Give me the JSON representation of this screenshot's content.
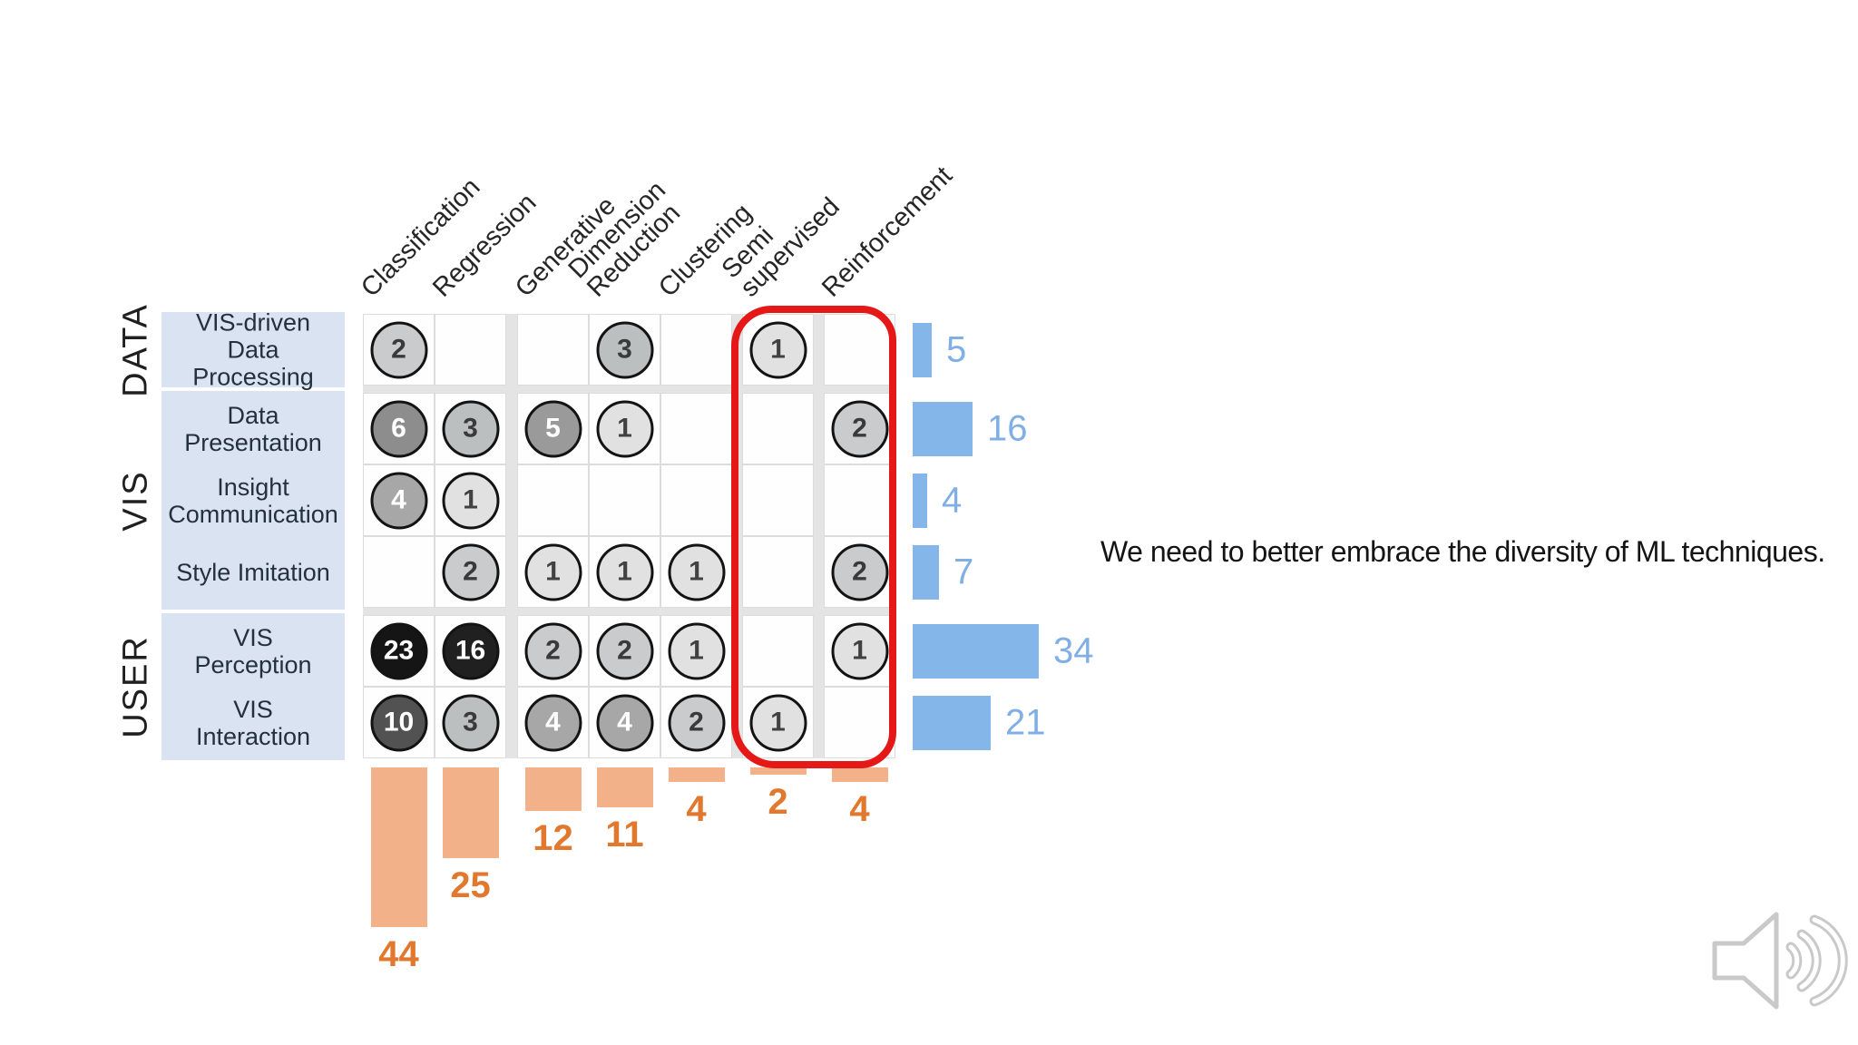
{
  "slide": {
    "quote": "We need to better embrace the diversity of ML techniques."
  },
  "icons": {
    "audio": "speaker-sound-waves-icon"
  },
  "colors": {
    "row_label_box": "#d9e3f1",
    "row_label_text": "#25303f",
    "group_label_text": "#1f1f1f",
    "header_text": "#262626",
    "grid_gap": "#e4e4e4",
    "cell_bg": "#fefefe",
    "cell_border": "#dcdcdc",
    "circle_border": "#131313",
    "row_bar": "#85b6ea",
    "row_bar_label": "#7fafe4",
    "col_bar": "#f3b189",
    "col_bar_label": "#e2772e",
    "highlight": "#e51717",
    "quote_text": "#141414",
    "icon_stroke": "#c9c9c9"
  },
  "circle_shades": {
    "1": {
      "fill": "#e1e1e1",
      "text": "#414141"
    },
    "2": {
      "fill": "#c9cbcc",
      "text": "#3a3a3a"
    },
    "3": {
      "fill": "#bcbfc0",
      "text": "#3a3a3a"
    },
    "4": {
      "fill": "#a7a7a7",
      "text": "#ffffff"
    },
    "5": {
      "fill": "#9a9a9a",
      "text": "#ffffff"
    },
    "6": {
      "fill": "#8d8d8d",
      "text": "#ffffff"
    },
    "10": {
      "fill": "#525252",
      "text": "#ffffff"
    },
    "16": {
      "fill": "#202020",
      "text": "#ffffff"
    },
    "23": {
      "fill": "#151515",
      "text": "#ffffff"
    }
  },
  "chart_data": [
    {
      "type": "heatmap",
      "title": "",
      "row_groups": [
        {
          "label": "DATA",
          "rows": [
            "VIS-driven\nData\nProcessing"
          ]
        },
        {
          "label": "VIS",
          "rows": [
            "Data\nPresentation",
            "Insight\nCommunication",
            "Style Imitation"
          ]
        },
        {
          "label": "USER",
          "rows": [
            "VIS\nPerception",
            "VIS\nInteraction"
          ]
        }
      ],
      "column_groups": [
        {
          "columns": [
            "Classification",
            "Regression"
          ]
        },
        {
          "columns": [
            "Generative",
            "Dimension\nReduction",
            "Clustering"
          ]
        },
        {
          "columns": [
            "Semi\nsupervised"
          ]
        },
        {
          "columns": [
            "Reinforcement"
          ]
        }
      ],
      "values": [
        [
          2,
          null,
          null,
          3,
          null,
          1,
          null
        ],
        [
          6,
          3,
          5,
          1,
          null,
          null,
          2
        ],
        [
          4,
          1,
          null,
          null,
          null,
          null,
          null
        ],
        [
          null,
          2,
          1,
          1,
          1,
          null,
          2
        ],
        [
          23,
          16,
          2,
          2,
          1,
          null,
          1
        ],
        [
          10,
          3,
          4,
          4,
          2,
          1,
          null
        ]
      ],
      "annotation": {
        "shape": "hand-drawn red outline",
        "around_columns": [
          "Semi supervised",
          "Reinforcement"
        ]
      }
    },
    {
      "type": "bar",
      "name": "row totals",
      "orientation": "horizontal-right",
      "position": "right of matrix",
      "categories": [
        "VIS-driven Data Processing",
        "Data Presentation",
        "Insight Communication",
        "Style Imitation",
        "VIS Perception",
        "VIS Interaction"
      ],
      "values": [
        5,
        16,
        4,
        7,
        34,
        21
      ]
    },
    {
      "type": "bar",
      "name": "column totals",
      "orientation": "vertical-down",
      "position": "below matrix",
      "categories": [
        "Classification",
        "Regression",
        "Generative",
        "Dimension Reduction",
        "Clustering",
        "Semi supervised",
        "Reinforcement"
      ],
      "values": [
        44,
        25,
        12,
        11,
        4,
        2,
        4
      ]
    }
  ]
}
